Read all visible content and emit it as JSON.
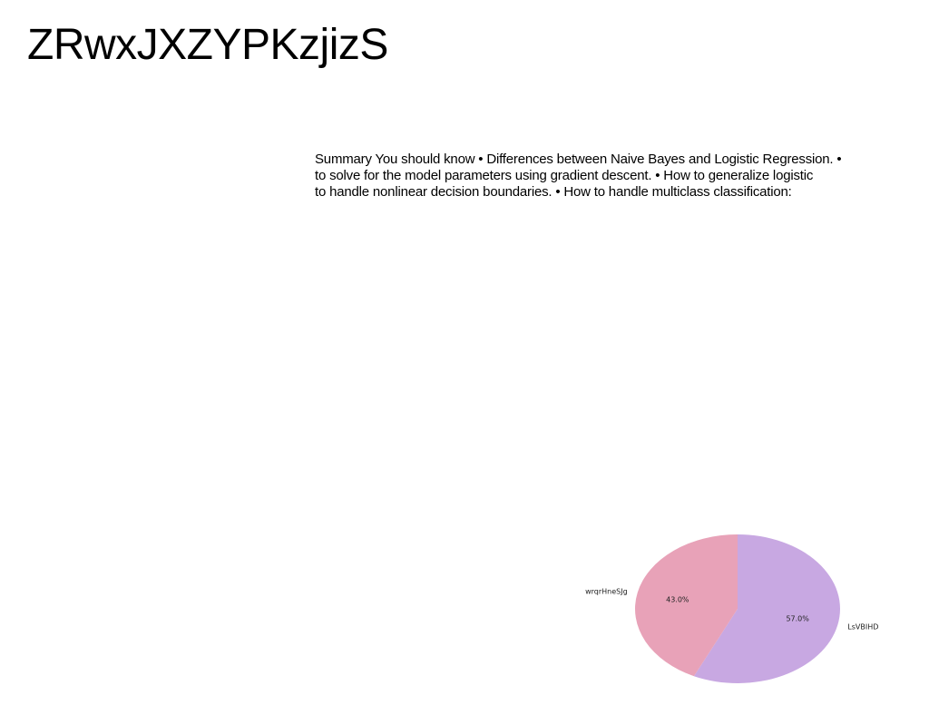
{
  "slide": {
    "title": "ZRwxJXZYPKzjizS",
    "summary_lines": [
      "Summary You should know • Differences between Naive Bayes and Logistic Regression. •",
      "to solve for the model parameters using gradient descent. • How to generalize logistic",
      "to handle nonlinear decision boundaries. • How to handle multiclass classification:"
    ]
  },
  "chart_data": {
    "type": "pie",
    "title": "",
    "labels": [
      "LsVBIHD",
      "wrqrHneSJg"
    ],
    "values": [
      57.0,
      43.0
    ],
    "percent_labels": [
      "57.0%",
      "43.0%"
    ],
    "colors": [
      "#c8a8e2",
      "#e8a2b8"
    ],
    "start_angle_deg": 90,
    "direction": "clockwise",
    "legend": "none"
  }
}
